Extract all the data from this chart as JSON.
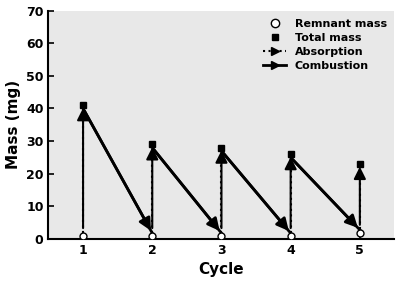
{
  "cycles": [
    1,
    2,
    3,
    4,
    5
  ],
  "remnant_mass": [
    1,
    1,
    1,
    1,
    2
  ],
  "total_mass": [
    41,
    29,
    28,
    26,
    23
  ],
  "xlabel": "Cycle",
  "ylabel": "Mass (mg)",
  "ylim": [
    0,
    70
  ],
  "yticks": [
    0,
    10,
    20,
    30,
    40,
    50,
    60,
    70
  ],
  "xticks": [
    1,
    2,
    3,
    4,
    5
  ],
  "legend_labels": [
    "Remnant mass",
    "Total mass",
    "Absorption",
    "Combustion"
  ],
  "background_color": "#ffffff",
  "plot_bg_color": "#e8e8e8"
}
